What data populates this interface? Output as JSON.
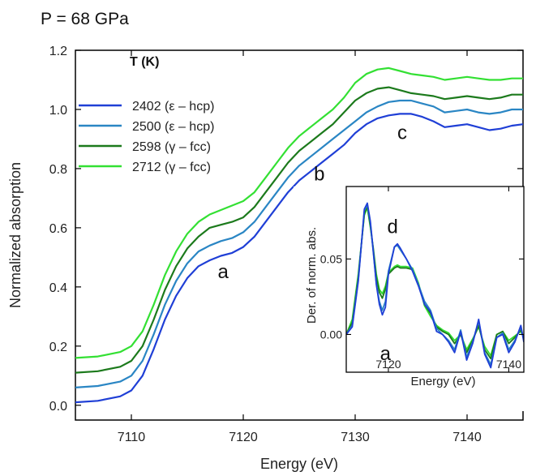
{
  "title": "P = 68 GPa",
  "colors": {
    "s2402": "#1f3fd6",
    "s2500": "#2a86c4",
    "s2598": "#1c7a1c",
    "s2712": "#33e033"
  },
  "chart_data": [
    {
      "type": "line",
      "title": "P = 68 GPa",
      "xlabel": "Energy (eV)",
      "ylabel": "Normalized absorption",
      "xlim": [
        7105,
        7145
      ],
      "ylim": [
        -0.05,
        1.2
      ],
      "xticks": [
        7110,
        7120,
        7130,
        7140
      ],
      "yticks": [
        0.0,
        0.2,
        0.4,
        0.6,
        0.8,
        1.0,
        1.2
      ],
      "legend_title": "T (K)",
      "legend_position": "top-left",
      "x": [
        7105,
        7107,
        7109,
        7110,
        7111,
        7112,
        7113,
        7114,
        7115,
        7116,
        7117,
        7118,
        7119,
        7120,
        7121,
        7122,
        7123,
        7124,
        7125,
        7126,
        7127,
        7128,
        7129,
        7130,
        7131,
        7132,
        7133,
        7134,
        7135,
        7136,
        7137,
        7138,
        7139,
        7140,
        7141,
        7142,
        7143,
        7144,
        7145
      ],
      "series": [
        {
          "name": "2402 (ε – hcp)",
          "color_key": "s2402",
          "values": [
            0.01,
            0.015,
            0.03,
            0.05,
            0.1,
            0.19,
            0.29,
            0.37,
            0.43,
            0.47,
            0.49,
            0.505,
            0.515,
            0.535,
            0.57,
            0.62,
            0.67,
            0.72,
            0.76,
            0.79,
            0.82,
            0.85,
            0.88,
            0.92,
            0.95,
            0.97,
            0.98,
            0.985,
            0.985,
            0.975,
            0.96,
            0.94,
            0.945,
            0.95,
            0.94,
            0.93,
            0.935,
            0.945,
            0.95
          ]
        },
        {
          "name": "2500 (ε – hcp)",
          "color_key": "s2500",
          "values": [
            0.06,
            0.065,
            0.08,
            0.1,
            0.15,
            0.24,
            0.34,
            0.42,
            0.48,
            0.52,
            0.54,
            0.555,
            0.565,
            0.585,
            0.62,
            0.67,
            0.72,
            0.77,
            0.81,
            0.84,
            0.87,
            0.9,
            0.93,
            0.96,
            0.99,
            1.01,
            1.025,
            1.03,
            1.03,
            1.02,
            1.01,
            0.99,
            0.995,
            1.0,
            0.99,
            0.985,
            0.99,
            1.0,
            1.0
          ]
        },
        {
          "name": "2598 (γ – fcc)",
          "color_key": "s2598",
          "values": [
            0.11,
            0.115,
            0.13,
            0.15,
            0.2,
            0.29,
            0.39,
            0.47,
            0.53,
            0.57,
            0.6,
            0.61,
            0.62,
            0.635,
            0.67,
            0.72,
            0.77,
            0.82,
            0.86,
            0.89,
            0.92,
            0.95,
            0.99,
            1.03,
            1.055,
            1.07,
            1.075,
            1.065,
            1.055,
            1.05,
            1.045,
            1.035,
            1.04,
            1.045,
            1.04,
            1.035,
            1.04,
            1.05,
            1.05
          ]
        },
        {
          "name": "2712 (γ – fcc)",
          "color_key": "s2712",
          "values": [
            0.16,
            0.165,
            0.18,
            0.2,
            0.25,
            0.34,
            0.44,
            0.52,
            0.58,
            0.62,
            0.645,
            0.66,
            0.675,
            0.69,
            0.72,
            0.77,
            0.82,
            0.87,
            0.91,
            0.94,
            0.97,
            1.0,
            1.04,
            1.09,
            1.12,
            1.135,
            1.14,
            1.13,
            1.12,
            1.115,
            1.11,
            1.1,
            1.105,
            1.11,
            1.105,
            1.1,
            1.1,
            1.105,
            1.105
          ]
        }
      ],
      "annotations": [
        {
          "text": "a",
          "x": 7118.2,
          "y": 0.43
        },
        {
          "text": "b",
          "x": 7126.8,
          "y": 0.76
        },
        {
          "text": "c",
          "x": 7134.2,
          "y": 0.9
        }
      ]
    },
    {
      "type": "line",
      "title": "",
      "xlabel": "Energy (eV)",
      "ylabel": "Der. of norm. abs.",
      "xlim": [
        7113,
        7142.5
      ],
      "ylim": [
        -0.025,
        0.098
      ],
      "xticks": [
        7120,
        7140
      ],
      "yticks": [
        0.0,
        0.05
      ],
      "x": [
        7113,
        7114,
        7115,
        7116,
        7116.5,
        7117,
        7117.5,
        7118,
        7118.5,
        7119,
        7119.5,
        7120,
        7121,
        7121.5,
        7122,
        7123,
        7124,
        7125,
        7126,
        7127,
        7128,
        7129,
        7130,
        7131,
        7132,
        7133,
        7134,
        7135,
        7136,
        7137,
        7138,
        7139,
        7140,
        7141,
        7142,
        7142.5
      ],
      "series": [
        {
          "name": "",
          "color_key": "s2402",
          "values": [
            0.0,
            0.005,
            0.035,
            0.083,
            0.087,
            0.075,
            0.055,
            0.033,
            0.02,
            0.013,
            0.018,
            0.04,
            0.058,
            0.06,
            0.057,
            0.05,
            0.042,
            0.032,
            0.02,
            0.015,
            0.002,
            0.0,
            -0.005,
            -0.012,
            0.002,
            -0.017,
            -0.006,
            0.01,
            -0.013,
            -0.022,
            -0.002,
            0.0,
            -0.012,
            -0.005,
            0.006,
            -0.005
          ]
        },
        {
          "name": "",
          "color_key": "s2500",
          "values": [
            0.0,
            0.006,
            0.036,
            0.082,
            0.086,
            0.074,
            0.054,
            0.034,
            0.022,
            0.016,
            0.022,
            0.042,
            0.058,
            0.059,
            0.056,
            0.05,
            0.043,
            0.033,
            0.022,
            0.016,
            0.004,
            0.0,
            -0.004,
            -0.01,
            0.003,
            -0.015,
            -0.005,
            0.009,
            -0.012,
            -0.02,
            -0.002,
            0.001,
            -0.01,
            -0.004,
            0.005,
            -0.004
          ]
        },
        {
          "name": "",
          "color_key": "s2598",
          "values": [
            0.0,
            0.008,
            0.038,
            0.08,
            0.085,
            0.072,
            0.056,
            0.038,
            0.028,
            0.024,
            0.03,
            0.04,
            0.044,
            0.045,
            0.044,
            0.044,
            0.043,
            0.033,
            0.02,
            0.014,
            0.005,
            0.002,
            0.0,
            -0.006,
            0.0,
            -0.012,
            -0.004,
            0.006,
            -0.01,
            -0.016,
            0.0,
            0.002,
            -0.006,
            -0.002,
            0.003,
            -0.003
          ]
        },
        {
          "name": "",
          "color_key": "s2712",
          "values": [
            0.0,
            0.01,
            0.04,
            0.079,
            0.084,
            0.071,
            0.057,
            0.04,
            0.03,
            0.027,
            0.032,
            0.041,
            0.045,
            0.046,
            0.045,
            0.045,
            0.044,
            0.034,
            0.019,
            0.012,
            0.006,
            0.003,
            0.001,
            -0.004,
            0.0,
            -0.01,
            -0.003,
            0.005,
            -0.008,
            -0.014,
            0.0,
            0.002,
            -0.004,
            -0.001,
            0.002,
            -0.002
          ]
        }
      ],
      "annotations": [
        {
          "text": "d",
          "x": 7120.7,
          "y": 0.067
        },
        {
          "text": "a",
          "x": 7119.5,
          "y": -0.017
        }
      ]
    }
  ]
}
